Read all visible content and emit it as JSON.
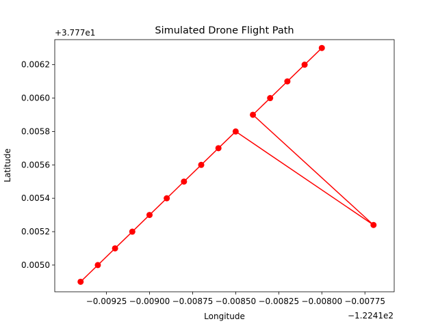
{
  "chart_data": {
    "type": "line",
    "title": "Simulated Drone Flight Path",
    "xlabel": "Longitude",
    "ylabel": "Latitude",
    "x_offset_label": "−1.2241e2",
    "y_offset_label": "+3.777e1",
    "series_color": "#ff0000",
    "xlim": [
      -0.00955,
      -0.00758
    ],
    "ylim": [
      0.00484,
      0.00635
    ],
    "xticks": [
      -0.00925,
      -0.009,
      -0.00875,
      -0.0085,
      -0.00825,
      -0.008,
      -0.00775
    ],
    "xtick_labels": [
      "−0.00925",
      "−0.00900",
      "−0.00875",
      "−0.00850",
      "−0.00825",
      "−0.00800",
      "−0.00775"
    ],
    "yticks": [
      0.005,
      0.0052,
      0.0054,
      0.0056,
      0.0058,
      0.006,
      0.0062
    ],
    "ytick_labels": [
      "0.0050",
      "0.0052",
      "0.0054",
      "0.0056",
      "0.0058",
      "0.0060",
      "0.0062"
    ],
    "grid": false,
    "points": [
      {
        "x": -0.0094,
        "y": 0.0049
      },
      {
        "x": -0.0093,
        "y": 0.005
      },
      {
        "x": -0.0092,
        "y": 0.0051
      },
      {
        "x": -0.0091,
        "y": 0.0052
      },
      {
        "x": -0.009,
        "y": 0.0053
      },
      {
        "x": -0.0089,
        "y": 0.0054
      },
      {
        "x": -0.0088,
        "y": 0.0055
      },
      {
        "x": -0.0087,
        "y": 0.0056
      },
      {
        "x": -0.0086,
        "y": 0.0057
      },
      {
        "x": -0.0085,
        "y": 0.0058
      },
      {
        "x": -0.0077,
        "y": 0.00524
      },
      {
        "x": -0.0084,
        "y": 0.0059
      },
      {
        "x": -0.0083,
        "y": 0.006
      },
      {
        "x": -0.0082,
        "y": 0.0061
      },
      {
        "x": -0.0081,
        "y": 0.0062
      },
      {
        "x": -0.008,
        "y": 0.0063
      }
    ]
  }
}
